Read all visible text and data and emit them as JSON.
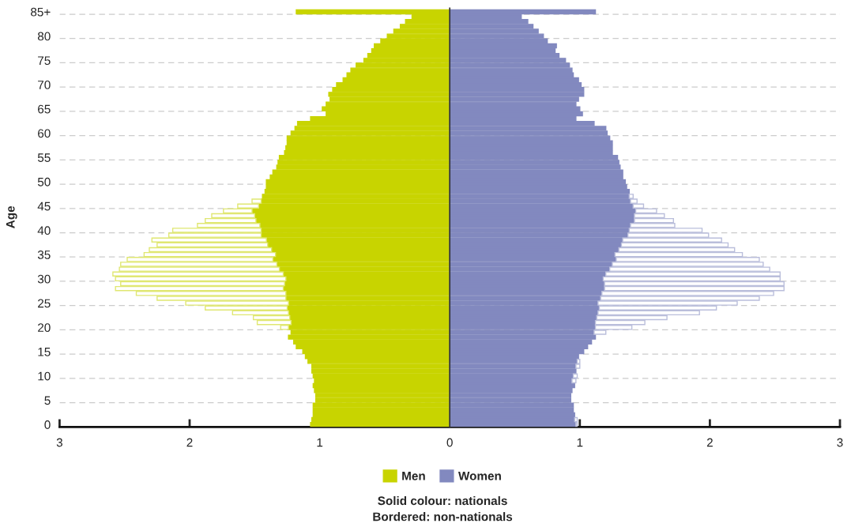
{
  "chart_data": {
    "type": "bar",
    "orientation": "horizontal",
    "stacked": true,
    "ylabel": "Age",
    "categories": [
      "85+",
      null,
      null,
      null,
      null,
      "80",
      null,
      null,
      null,
      null,
      "75",
      null,
      null,
      null,
      null,
      "70",
      null,
      null,
      null,
      null,
      "65",
      null,
      null,
      null,
      null,
      "60",
      null,
      null,
      null,
      null,
      "55",
      null,
      null,
      null,
      null,
      "50",
      null,
      null,
      null,
      null,
      "45",
      null,
      null,
      null,
      null,
      "40",
      null,
      null,
      null,
      null,
      "35",
      null,
      null,
      null,
      null,
      "30",
      null,
      null,
      null,
      null,
      "25",
      null,
      null,
      null,
      null,
      "20",
      null,
      null,
      null,
      null,
      "15",
      null,
      null,
      null,
      null,
      "10",
      null,
      null,
      null,
      null,
      "5",
      null,
      null,
      null,
      null,
      "0"
    ],
    "series": [
      {
        "name": "Men",
        "color": "#c8d400",
        "values": [
          -1.18,
          -0.29,
          -0.34,
          -0.38,
          -0.43,
          -0.48,
          -0.53,
          -0.58,
          -0.6,
          -0.63,
          -0.66,
          -0.72,
          -0.76,
          -0.79,
          -0.82,
          -0.87,
          -0.9,
          -0.93,
          -0.92,
          -0.95,
          -0.98,
          -0.95,
          -1.07,
          -1.17,
          -1.19,
          -1.22,
          -1.25,
          -1.25,
          -1.26,
          -1.27,
          -1.31,
          -1.32,
          -1.33,
          -1.36,
          -1.38,
          -1.41,
          -1.41,
          -1.42,
          -1.44,
          -1.45,
          -1.47,
          -1.52,
          -1.5,
          -1.49,
          -1.46,
          -1.45,
          -1.45,
          -1.41,
          -1.4,
          -1.37,
          -1.34,
          -1.36,
          -1.33,
          -1.31,
          -1.28,
          -1.26,
          -1.27,
          -1.28,
          -1.26,
          -1.26,
          -1.24,
          -1.25,
          -1.24,
          -1.23,
          -1.22,
          -1.24,
          -1.22,
          -1.24,
          -1.2,
          -1.18,
          -1.13,
          -1.11,
          -1.09,
          -1.06,
          -1.06,
          -1.05,
          -1.04,
          -1.05,
          -1.04,
          -1.03,
          -1.03,
          -1.05,
          -1.05,
          -1.05,
          -1.06,
          -1.07
        ]
      },
      {
        "color": "#ffffff",
        "values": [
          null,
          null,
          null,
          null,
          null,
          null,
          null,
          null,
          null,
          null,
          null,
          null,
          null,
          null,
          null,
          null,
          null,
          null,
          null,
          null,
          null,
          null,
          null,
          null,
          null,
          null,
          null,
          null,
          null,
          null,
          null,
          null,
          null,
          null,
          null,
          null,
          null,
          null,
          null,
          -0.07,
          -0.16,
          -0.22,
          -0.33,
          -0.39,
          -0.48,
          -0.68,
          -0.71,
          -0.88,
          -0.85,
          -0.94,
          -1.01,
          -1.12,
          -1.2,
          -1.23,
          -1.31,
          -1.31,
          -1.26,
          -1.29,
          -1.15,
          -0.99,
          -0.79,
          -0.63,
          -0.43,
          -0.28,
          -0.26,
          -0.06,
          null,
          null,
          null,
          null,
          null,
          null,
          null,
          null,
          null,
          null,
          null,
          null,
          null,
          null,
          null,
          null,
          null,
          null,
          null,
          null
        ]
      },
      {
        "name": "Women",
        "color": "#8289bf",
        "values": [
          1.12,
          0.55,
          0.6,
          0.64,
          0.68,
          0.72,
          0.75,
          0.82,
          0.81,
          0.84,
          0.89,
          0.92,
          0.94,
          0.95,
          0.99,
          1.01,
          1.03,
          1.03,
          0.99,
          0.97,
          1.0,
          1.02,
          0.97,
          1.11,
          1.2,
          1.21,
          1.23,
          1.25,
          1.25,
          1.25,
          1.29,
          1.3,
          1.31,
          1.33,
          1.33,
          1.35,
          1.36,
          1.38,
          1.38,
          1.39,
          1.41,
          1.43,
          1.42,
          1.42,
          1.39,
          1.38,
          1.37,
          1.33,
          1.32,
          1.3,
          1.27,
          1.28,
          1.25,
          1.23,
          1.2,
          1.18,
          1.19,
          1.19,
          1.17,
          1.16,
          1.14,
          1.15,
          1.14,
          1.13,
          1.12,
          1.12,
          1.11,
          1.12,
          1.09,
          1.06,
          1.03,
          0.99,
          0.98,
          0.97,
          0.97,
          0.95,
          0.94,
          0.96,
          0.94,
          0.93,
          0.93,
          0.95,
          0.95,
          0.96,
          0.96,
          0.97
        ]
      },
      {
        "color": "#ffffff",
        "values": [
          null,
          null,
          null,
          null,
          null,
          null,
          null,
          null,
          null,
          null,
          null,
          null,
          null,
          null,
          null,
          null,
          null,
          null,
          null,
          null,
          null,
          null,
          null,
          null,
          null,
          null,
          null,
          null,
          null,
          null,
          null,
          null,
          null,
          null,
          null,
          null,
          null,
          null,
          0.03,
          0.05,
          0.08,
          0.16,
          0.23,
          0.3,
          0.34,
          0.56,
          0.62,
          0.76,
          0.82,
          0.89,
          0.98,
          1.1,
          1.16,
          1.23,
          1.34,
          1.36,
          1.38,
          1.38,
          1.32,
          1.22,
          1.07,
          0.9,
          0.78,
          0.54,
          0.38,
          0.28,
          0.09,
          null,
          null,
          null,
          null,
          null,
          0.02,
          0.03,
          null,
          0.03,
          0.03,
          null,
          null,
          null,
          null,
          null,
          null,
          null,
          0.02,
          0.01
        ]
      }
    ],
    "xlim": [
      -3,
      3
    ],
    "xticks": [
      {
        "value": -3,
        "label": "3"
      },
      {
        "value": -2,
        "label": "2"
      },
      {
        "value": -1,
        "label": "1"
      },
      0,
      1,
      2,
      3
    ],
    "ref_lines": [
      {
        "axis": "x",
        "value": 0,
        "color": "#333333"
      }
    ],
    "grid": "y",
    "legend": "bottom",
    "annotations": [
      "Solid colour: nationals",
      "Bordered: non-nationals"
    ]
  }
}
